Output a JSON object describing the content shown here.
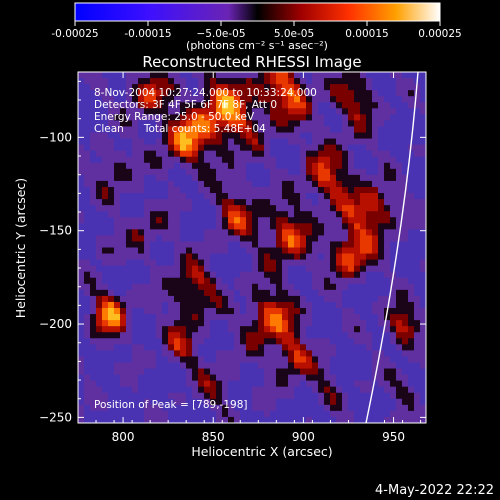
{
  "title": "Reconstructed RHESSI Image",
  "colorbar": {
    "ticks": [
      "-0.00025",
      "-0.00015",
      "−5.0e-05",
      "5.0e-05",
      "0.00015",
      "0.00025"
    ],
    "unit": "(photons cm⁻² s⁻¹ asec⁻²)",
    "range": [
      -0.00025,
      0.00025
    ]
  },
  "annotations": {
    "time_range": "8-Nov-2004 10:27:24.000 to 10:33:24.000",
    "detectors": "Detectors: 3F 4F 5F 6F 7F 8F, Att 0",
    "energy": "Energy Range: 25.0 - 50.0 keV",
    "clean": "Clean      Total counts: 5.48E+04",
    "peak": "Position of Peak = [789,-198]"
  },
  "footer": {
    "date": "4-May-2022 22:22"
  },
  "chart_data": {
    "type": "heatmap",
    "title": "Reconstructed RHESSI Image",
    "xlabel": "Heliocentric X (arcsec)",
    "ylabel": "Heliocentric Y (arcsec)",
    "xlim": [
      775,
      968
    ],
    "ylim": [
      -253,
      -65
    ],
    "x_ticks": [
      800,
      850,
      900,
      950
    ],
    "y_ticks": [
      -100,
      -150,
      -200,
      -250
    ],
    "x_tick_labels": [
      "800",
      "850",
      "900",
      "950"
    ],
    "y_tick_labels": [
      "−100",
      "−150",
      "−200",
      "−250"
    ],
    "peak": [
      789,
      -198
    ],
    "grid": false,
    "colormap": "hot with negative values in blue/purple"
  }
}
